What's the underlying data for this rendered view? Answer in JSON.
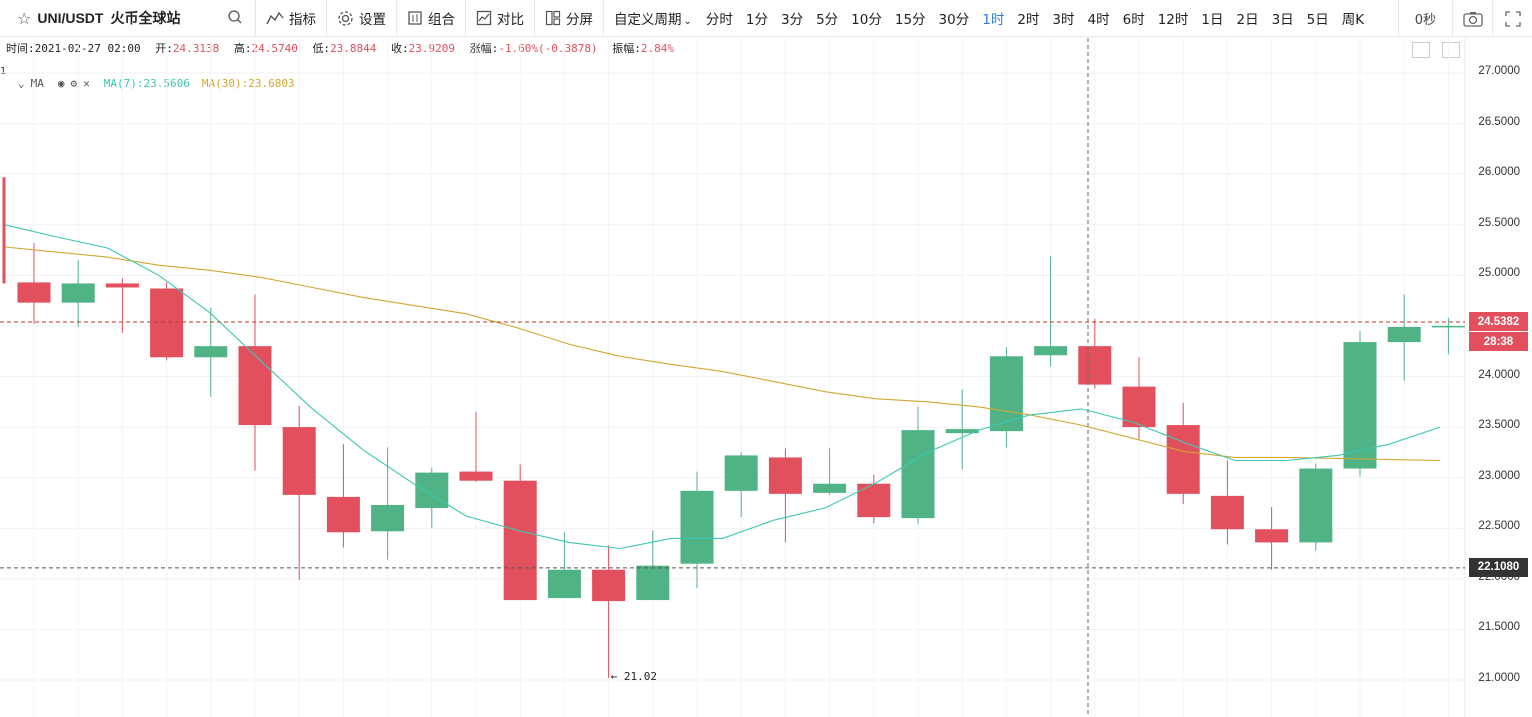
{
  "toolbar": {
    "symbol": "UNI/USDT",
    "exchange": "火币全球站",
    "indicators_label": "指标",
    "settings_label": "设置",
    "combo_label": "组合",
    "compare_label": "对比",
    "split_label": "分屏",
    "custom_period_label": "自定义周期",
    "periods": [
      "分时",
      "1分",
      "3分",
      "5分",
      "10分",
      "15分",
      "30分",
      "1时",
      "2时",
      "3时",
      "4时",
      "6时",
      "12时",
      "1日",
      "2日",
      "3日",
      "5日",
      "周K"
    ],
    "active_period": "1时",
    "seconds_label": "0秒"
  },
  "info": {
    "time_label": "时间:",
    "time": "2021-02-27 02:00",
    "open_label": "开:",
    "open": "24.3138",
    "high_label": "高:",
    "high": "24.5740",
    "low_label": "低:",
    "low": "23.8844",
    "close_label": "收:",
    "close": "23.9209",
    "change_label": "涨幅:",
    "change": "-1.60%(-0.3878)",
    "amplitude_label": "振幅:",
    "amplitude": "2.84%"
  },
  "pane_number": "1",
  "ma": {
    "name": "MA",
    "ma7": "MA(7):23.5606",
    "ma30": "MA(30):23.6803"
  },
  "price_axis": {
    "ticks": [
      "27.0000",
      "26.5000",
      "26.0000",
      "25.5000",
      "25.0000",
      "24.5000",
      "24.0000",
      "23.5000",
      "23.0000",
      "22.5000",
      "22.0000",
      "21.5000",
      "21.0000"
    ],
    "crosshair_price": "24.5382",
    "countdown": "28:38",
    "line_price": "22.1080"
  },
  "low_marker": "← 21.02",
  "colors": {
    "up": "#4fb386",
    "down": "#e2505e",
    "ma7": "#3cc7b4",
    "ma30": "#d2a631",
    "active": "#2d7fdb"
  },
  "chart_data": {
    "type": "candlestick",
    "series_ma7": [
      25.5,
      25.38,
      25.27,
      25.0,
      24.63,
      24.15,
      23.68,
      23.27,
      22.93,
      22.62,
      22.48,
      22.36,
      22.3,
      22.4,
      22.4,
      22.58,
      22.7,
      22.95,
      23.25,
      23.47,
      23.62,
      23.68,
      23.55,
      23.35,
      23.17,
      23.17,
      23.22,
      23.33,
      23.5
    ],
    "series_ma30": [
      25.28,
      25.23,
      25.18,
      25.1,
      25.05,
      24.98,
      24.88,
      24.78,
      24.7,
      24.62,
      24.48,
      24.32,
      24.2,
      24.12,
      24.05,
      23.95,
      23.85,
      23.78,
      23.75,
      23.7,
      23.62,
      23.52,
      23.39,
      23.26,
      23.2,
      23.2,
      23.19,
      23.18,
      23.17
    ],
    "candles": [
      {
        "o": 24.93,
        "h": 25.32,
        "l": 24.52,
        "c": 24.73
      },
      {
        "o": 24.73,
        "h": 25.15,
        "l": 24.49,
        "c": 24.92
      },
      {
        "o": 24.92,
        "h": 24.97,
        "l": 24.43,
        "c": 24.88
      },
      {
        "o": 24.87,
        "h": 24.93,
        "l": 24.16,
        "c": 24.19
      },
      {
        "o": 24.19,
        "h": 24.68,
        "l": 23.8,
        "c": 24.3
      },
      {
        "o": 24.3,
        "h": 24.81,
        "l": 23.07,
        "c": 23.52
      },
      {
        "o": 23.5,
        "h": 23.71,
        "l": 21.99,
        "c": 22.83
      },
      {
        "o": 22.81,
        "h": 23.33,
        "l": 22.31,
        "c": 22.46
      },
      {
        "o": 22.47,
        "h": 23.3,
        "l": 22.19,
        "c": 22.73
      },
      {
        "o": 22.7,
        "h": 23.1,
        "l": 22.5,
        "c": 23.05
      },
      {
        "o": 23.06,
        "h": 23.65,
        "l": 22.96,
        "c": 22.97
      },
      {
        "o": 22.97,
        "h": 23.13,
        "l": 21.81,
        "c": 21.79
      },
      {
        "o": 21.81,
        "h": 22.46,
        "l": 21.83,
        "c": 22.09
      },
      {
        "o": 22.09,
        "h": 22.33,
        "l": 21.02,
        "c": 21.78
      },
      {
        "o": 21.79,
        "h": 22.48,
        "l": 21.81,
        "c": 22.13
      },
      {
        "o": 22.15,
        "h": 23.06,
        "l": 21.91,
        "c": 22.87
      },
      {
        "o": 22.87,
        "h": 23.25,
        "l": 22.61,
        "c": 23.22
      },
      {
        "o": 23.2,
        "h": 23.29,
        "l": 22.36,
        "c": 22.84
      },
      {
        "o": 22.85,
        "h": 23.29,
        "l": 22.83,
        "c": 22.94
      },
      {
        "o": 22.94,
        "h": 23.03,
        "l": 22.55,
        "c": 22.61
      },
      {
        "o": 22.6,
        "h": 23.7,
        "l": 22.54,
        "c": 23.47
      },
      {
        "o": 23.44,
        "h": 23.87,
        "l": 23.08,
        "c": 23.48
      },
      {
        "o": 23.46,
        "h": 24.29,
        "l": 23.3,
        "c": 24.2
      },
      {
        "o": 24.21,
        "h": 25.19,
        "l": 24.1,
        "c": 24.3
      },
      {
        "o": 24.3,
        "h": 24.57,
        "l": 23.88,
        "c": 23.92
      },
      {
        "o": 23.9,
        "h": 24.19,
        "l": 23.38,
        "c": 23.5
      },
      {
        "o": 23.52,
        "h": 23.74,
        "l": 22.74,
        "c": 22.84
      },
      {
        "o": 22.82,
        "h": 23.17,
        "l": 22.34,
        "c": 22.49
      },
      {
        "o": 22.49,
        "h": 22.71,
        "l": 22.09,
        "c": 22.36
      },
      {
        "o": 22.36,
        "h": 23.14,
        "l": 22.28,
        "c": 23.09
      },
      {
        "o": 23.09,
        "h": 24.45,
        "l": 23.01,
        "c": 24.34
      },
      {
        "o": 24.34,
        "h": 24.81,
        "l": 23.96,
        "c": 24.49
      },
      {
        "o": 24.49,
        "h": 24.58,
        "l": 24.22,
        "c": 24.5
      }
    ],
    "ylim": [
      20.8,
      27.4
    ]
  }
}
